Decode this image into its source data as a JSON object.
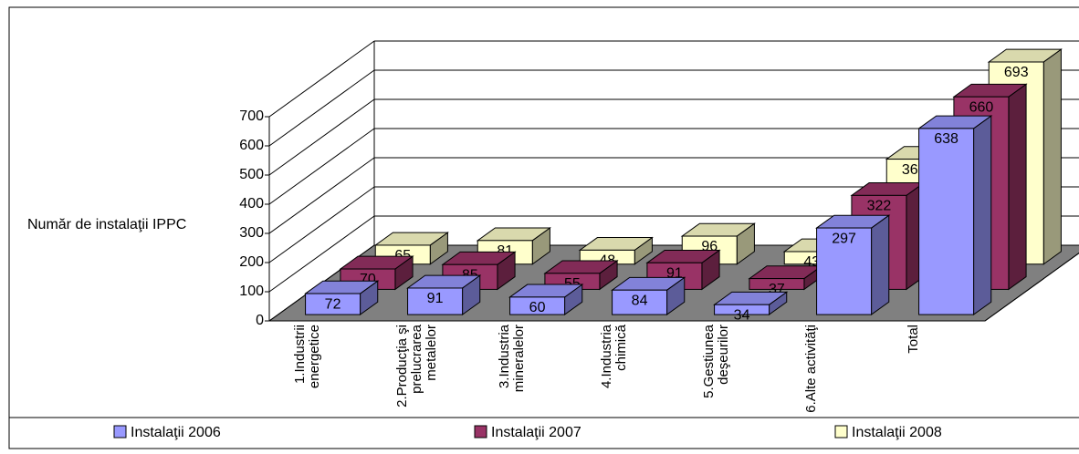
{
  "chart_data": {
    "type": "bar3d",
    "y_label": "Număr de instalaţii IPPC",
    "categories": [
      "1.Industrii energetice",
      "2.Producţia şi prelucrarea metalelor",
      "3.Industria mineralelor",
      "4.Industria chimică",
      "5.Gestiunea deşeurilor",
      "6.Alte activităţi",
      "Total"
    ],
    "series": [
      {
        "name": "Instalaţii 2006",
        "color": "#9999ff",
        "values": [
          72,
          91,
          60,
          84,
          34,
          297,
          638
        ]
      },
      {
        "name": "Instalaţii 2007",
        "color": "#993366",
        "values": [
          70,
          85,
          55,
          91,
          37,
          322,
          660
        ]
      },
      {
        "name": "Instalaţii 2008",
        "color": "#ffffcc",
        "values": [
          65,
          81,
          48,
          96,
          43,
          360,
          693
        ]
      }
    ],
    "ylim": [
      0,
      700
    ],
    "yticks": [
      0,
      100,
      200,
      300,
      400,
      500,
      600,
      700
    ],
    "grid": true,
    "legend": "bottom"
  }
}
